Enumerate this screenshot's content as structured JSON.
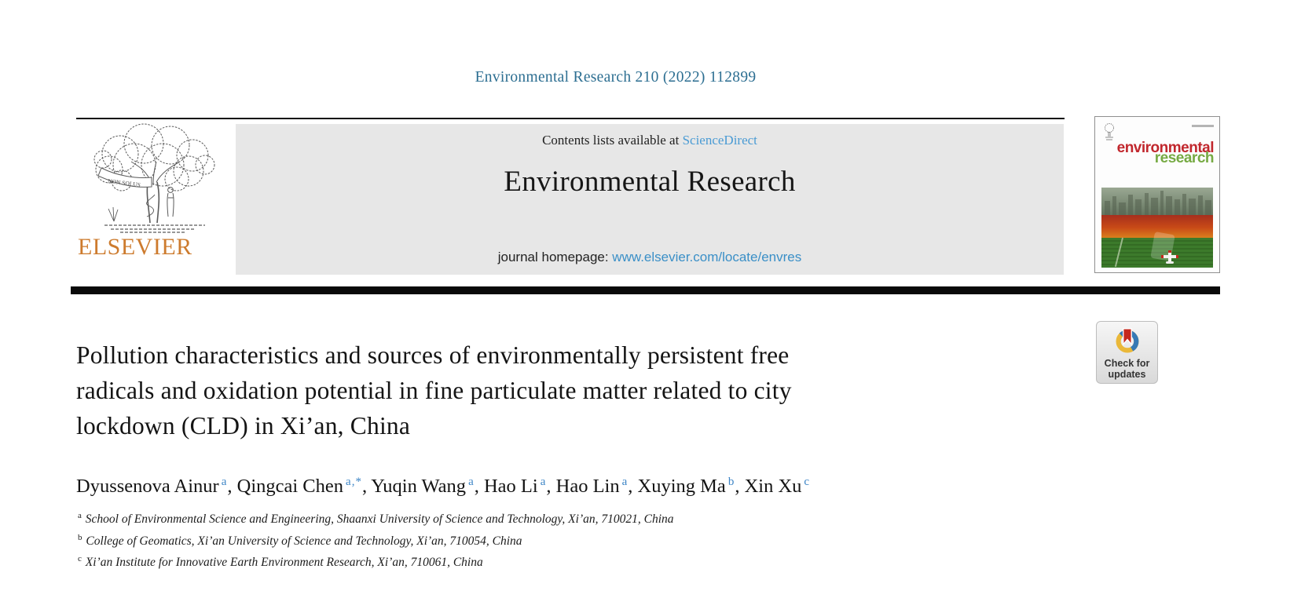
{
  "page": {
    "citation": "Environmental Research 210 (2022) 112899"
  },
  "header": {
    "contents_prefix": "Contents lists available at ",
    "sciencedirect_link": "ScienceDirect",
    "journal_title": "Environmental Research",
    "homepage_label": "journal homepage: ",
    "homepage_url": "www.elsevier.com/locate/envres",
    "elsevier_wordmark": "ELSEVIER",
    "logo_motto": "NON SOLUS"
  },
  "cover": {
    "word1": "environmental",
    "word2": "research"
  },
  "badge": {
    "line1": "Check for",
    "line2": "updates"
  },
  "article": {
    "title_lines": [
      "Pollution characteristics and sources of environmentally persistent free",
      "radicals and oxidation potential in fine particulate matter related to city",
      "lockdown (CLD) in Xi’an, China"
    ],
    "authors": [
      {
        "name": "Dyussenova Ainur",
        "sup": "a"
      },
      {
        "name": "Qingcai Chen",
        "sup": "a,*"
      },
      {
        "name": "Yuqin Wang",
        "sup": "a"
      },
      {
        "name": "Hao Li",
        "sup": "a"
      },
      {
        "name": "Hao Lin",
        "sup": "a"
      },
      {
        "name": "Xuying Ma",
        "sup": "b"
      },
      {
        "name": "Xin Xu",
        "sup": "c"
      }
    ],
    "affiliations": [
      {
        "sup": "a",
        "text": "School of Environmental Science and Engineering, Shaanxi University of Science and Technology, Xi’an, 710021, China"
      },
      {
        "sup": "b",
        "text": "College of Geomatics, Xi’an University of Science and Technology, Xi’an, 710054, China"
      },
      {
        "sup": "c",
        "text": "Xi’an Institute for Innovative Earth Environment Research, Xi’an, 710061, China"
      }
    ]
  },
  "colors": {
    "citation_blue": "#2c6e91",
    "sciencedirect_blue": "#4a9bd4",
    "homepage_blue": "#3a8fc7",
    "superscript_blue": "#3d85c6",
    "elsevier_orange": "#cd7b2e",
    "banner_gray": "#e7e7e7",
    "cover_red": "#c1272d",
    "cover_green": "#76aa43",
    "badge_ring_yellow": "#eab839",
    "badge_ring_blue": "#3679b5",
    "badge_bookmark_red": "#c5281c"
  }
}
